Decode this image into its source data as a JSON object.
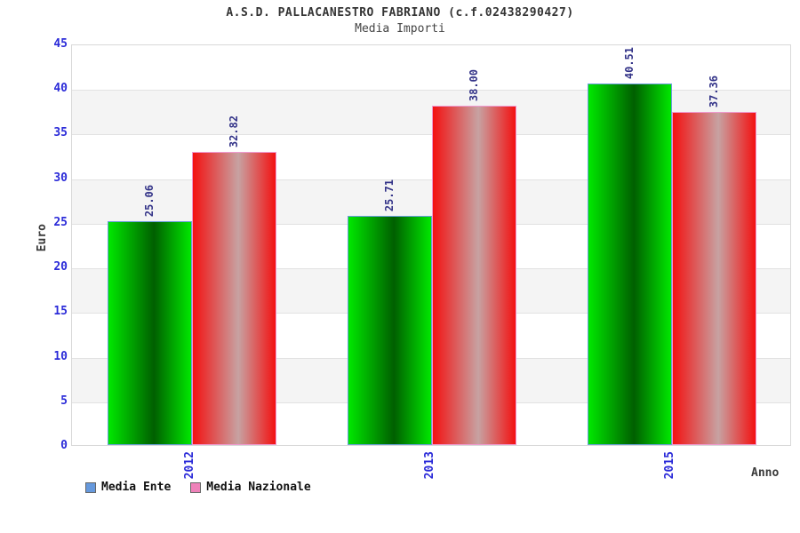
{
  "header": {
    "title": "A.S.D. PALLACANESTRO FABRIANO (c.f.02438290427)",
    "subtitle": "Media Importi"
  },
  "chart_data": {
    "type": "bar",
    "categories": [
      "2012",
      "2013",
      "2015"
    ],
    "series": [
      {
        "name": "Media Ente",
        "values": [
          25.06,
          25.71,
          40.51
        ],
        "color_edge": "#00e800",
        "color_center": "#005f00",
        "border_color": "#6a9fd8",
        "legend_color": "#6699dd"
      },
      {
        "name": "Media Nazionale",
        "values": [
          32.82,
          38.0,
          37.36
        ],
        "color_edge": "#f31111",
        "color_center": "#c7a2a2",
        "border_color": "#f09ad0",
        "legend_color": "#ee82b9"
      }
    ],
    "title": "A.S.D. PALLACANESTRO FABRIANO (c.f.02438290427)",
    "subtitle": "Media Importi",
    "ylabel": "Euro",
    "xlabel": "Anno",
    "ylim": [
      0,
      45
    ],
    "ytick_step": 5,
    "yticks": [
      "0",
      "5",
      "10",
      "15",
      "20",
      "25",
      "30",
      "35",
      "40",
      "45"
    ],
    "grid": true,
    "band_color": "#f4f4f4",
    "gridline_color": "#e2e2e2",
    "tick_color": "#2a2ad8",
    "value_label_color": "#333388",
    "legend_position": "bottom-left"
  }
}
